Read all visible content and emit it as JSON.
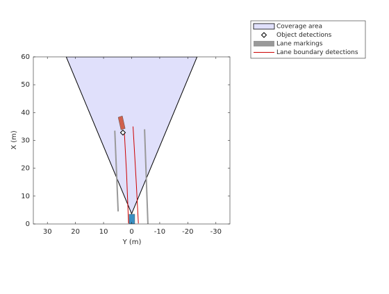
{
  "chart_data": {
    "type": "birdseye",
    "xlabel": "Y (m)",
    "ylabel": "X (m)",
    "xlim": [
      35,
      -35
    ],
    "xticks": [
      30,
      20,
      10,
      0,
      -10,
      -20,
      -30
    ],
    "ylim": [
      0,
      60
    ],
    "yticks": [
      0,
      10,
      20,
      30,
      40,
      50,
      60
    ],
    "legend": "outside-top-right",
    "series": [
      {
        "name": "Coverage area",
        "style": "polygon",
        "color": "#e0e0fb",
        "x": [
          0,
          23.3,
          -23.3
        ],
        "values": [
          3.7,
          60,
          60
        ]
      },
      {
        "name": "Object detections",
        "style": "marker",
        "color": "#000000",
        "x": [
          3.1
        ],
        "values": [
          32.8
        ]
      },
      {
        "name": "Lane markings",
        "style": "band",
        "color": "#999999",
        "x": [
          6.0,
          4.8,
          null,
          -4.6,
          -5.8
        ],
        "values": [
          33.5,
          4.5,
          null,
          34,
          0
        ]
      },
      {
        "name": "Lane boundary detections",
        "style": "line",
        "color": "#cc0000",
        "x": [
          2.6,
          1.8,
          1.1,
          null,
          -0.5,
          -1.6,
          -2.4
        ],
        "values": [
          33,
          18,
          0.2,
          null,
          35,
          15.7,
          0.2
        ]
      },
      {
        "style": "vehicle",
        "color": "#d0604c",
        "x": [
          4.8,
          3.3,
          2.3,
          3.8
        ],
        "values": [
          38.3,
          38.8,
          34.3,
          33.8
        ]
      },
      {
        "style": "vehicle",
        "color": "#3a8fc2",
        "x": [
          0.9,
          -1.1,
          -1.1,
          0.9
        ],
        "values": [
          3.5,
          3.5,
          0,
          0
        ]
      }
    ]
  }
}
